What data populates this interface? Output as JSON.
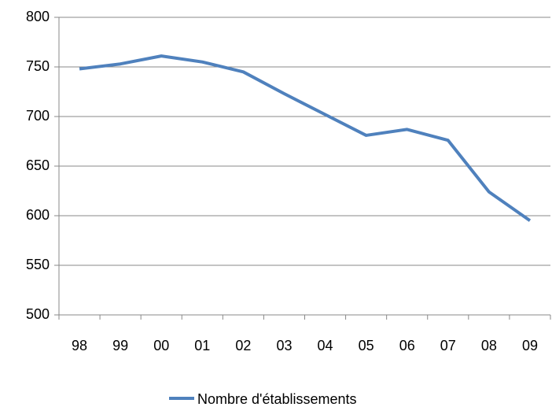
{
  "chart_data": {
    "type": "line",
    "categories": [
      "98",
      "99",
      "00",
      "01",
      "02",
      "03",
      "04",
      "05",
      "06",
      "07",
      "08",
      "09"
    ],
    "series": [
      {
        "name": "Nombre d'établissements",
        "color": "#4f81bd",
        "values": [
          748,
          753,
          761,
          755,
          745,
          723,
          702,
          681,
          687,
          676,
          624,
          595
        ]
      }
    ],
    "ylim": [
      500,
      800
    ],
    "yticks": [
      500,
      550,
      600,
      650,
      700,
      750,
      800
    ],
    "grid": true,
    "legend": "bottom"
  }
}
